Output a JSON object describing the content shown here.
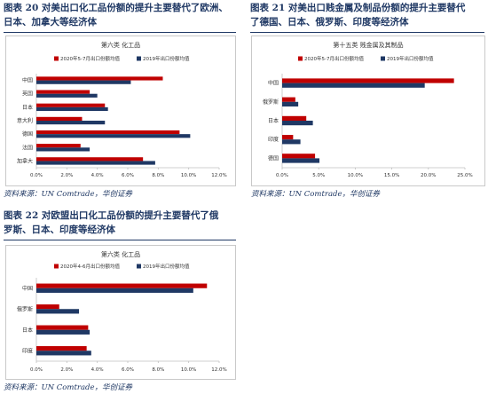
{
  "colors": {
    "primary_series": "#c00000",
    "secondary_series": "#1f3864",
    "text_navy": "#1f3864"
  },
  "source_text": "资料来源：UN Comtrade，华创证券",
  "fig20": {
    "caption_line1": "图表 20   对美出口化工品份额的提升主要替代了欧洲、",
    "caption_line2": "日本、加拿大等经济体"
  },
  "fig21": {
    "caption_line1": "图表 21   对美出口贱金属及制品份额的提升主要替代",
    "caption_line2": "了德国、日本、俄罗斯、印度等经济体"
  },
  "fig22": {
    "caption_line1": "图表 22   对欧盟出口化工品份额的提升主要替代了俄",
    "caption_line2": "罗斯、日本、印度等经济体"
  },
  "chart_data": [
    {
      "id": "fig20",
      "type": "bar",
      "orientation": "horizontal",
      "title": "第六类 化工品",
      "categories": [
        "中国",
        "英国",
        "日本",
        "意大利",
        "德国",
        "法国",
        "加拿大"
      ],
      "series": [
        {
          "name": "2020年5-7月出口份额均值",
          "values": [
            8.3,
            3.5,
            4.5,
            3.0,
            9.4,
            2.9,
            7.0
          ]
        },
        {
          "name": "2019年出口份额均值",
          "values": [
            6.2,
            4.0,
            4.7,
            4.5,
            10.1,
            3.5,
            7.8
          ]
        }
      ],
      "xlim": [
        0,
        12
      ],
      "xticks": [
        "0.0%",
        "2.0%",
        "4.0%",
        "6.0%",
        "8.0%",
        "10.0%",
        "12.0%"
      ],
      "legend": "top",
      "grid": false
    },
    {
      "id": "fig21",
      "type": "bar",
      "orientation": "horizontal",
      "title": "第十五类 贱金属及其制品",
      "categories": [
        "中国",
        "俄罗斯",
        "日本",
        "印度",
        "德国"
      ],
      "series": [
        {
          "name": "2020年5-7月出口份额均值",
          "values": [
            23.5,
            1.8,
            3.3,
            1.5,
            4.5
          ]
        },
        {
          "name": "2019年出口份额均值",
          "values": [
            19.5,
            2.2,
            4.2,
            2.5,
            5.1
          ]
        }
      ],
      "xlim": [
        0,
        25
      ],
      "xticks": [
        "0.0%",
        "5.0%",
        "10.0%",
        "15.0%",
        "20.0%",
        "25.0%"
      ],
      "legend": "top",
      "grid": false
    },
    {
      "id": "fig22",
      "type": "bar",
      "orientation": "horizontal",
      "title": "第六类 化工品",
      "categories": [
        "中国",
        "俄罗斯",
        "日本",
        "印度"
      ],
      "series": [
        {
          "name": "2020年4-6月出口份额均值",
          "values": [
            11.2,
            1.5,
            3.4,
            3.3
          ]
        },
        {
          "name": "2019年出口份额均值",
          "values": [
            10.3,
            2.8,
            3.5,
            3.6
          ]
        }
      ],
      "xlim": [
        0,
        12
      ],
      "xticks": [
        "0.0%",
        "2.0%",
        "4.0%",
        "6.0%",
        "8.0%",
        "10.0%",
        "12.0%"
      ],
      "legend": "top",
      "grid": false
    }
  ]
}
